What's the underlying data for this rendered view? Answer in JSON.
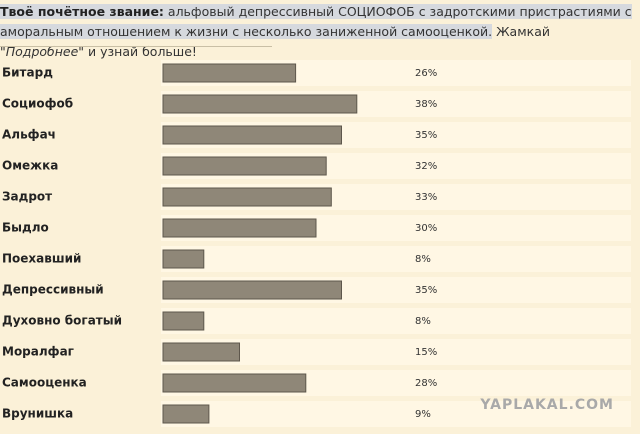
{
  "header": {
    "label": "Твоё почётное звание:",
    "text": "альфовый депрессивный СОЦИОФОБ с задротскими пристрастиями с аморальным отношением к жизни с несколько заниженной самооценкой.",
    "cta_before": "Жамкай \"",
    "cta_link": "Подробнее",
    "cta_after": "\" и узнай больше!"
  },
  "chart_data": {
    "type": "bar",
    "categories": [
      "Битард",
      "Социофоб",
      "Альфач",
      "Омежка",
      "Задрот",
      "Быдло",
      "Поехавший",
      "Депрессивный",
      "Духовно богатый",
      "Моралфаг",
      "Самооценка",
      "Врунишка"
    ],
    "values": [
      26,
      38,
      35,
      32,
      33,
      30,
      8,
      35,
      8,
      15,
      28,
      9
    ],
    "value_labels": [
      "26%",
      "38%",
      "35%",
      "32%",
      "33%",
      "30%",
      "8%",
      "35%",
      "8%",
      "15%",
      "28%",
      "9%"
    ],
    "color": "#8f8778"
  },
  "watermark": "YAPLAKAL.COM"
}
